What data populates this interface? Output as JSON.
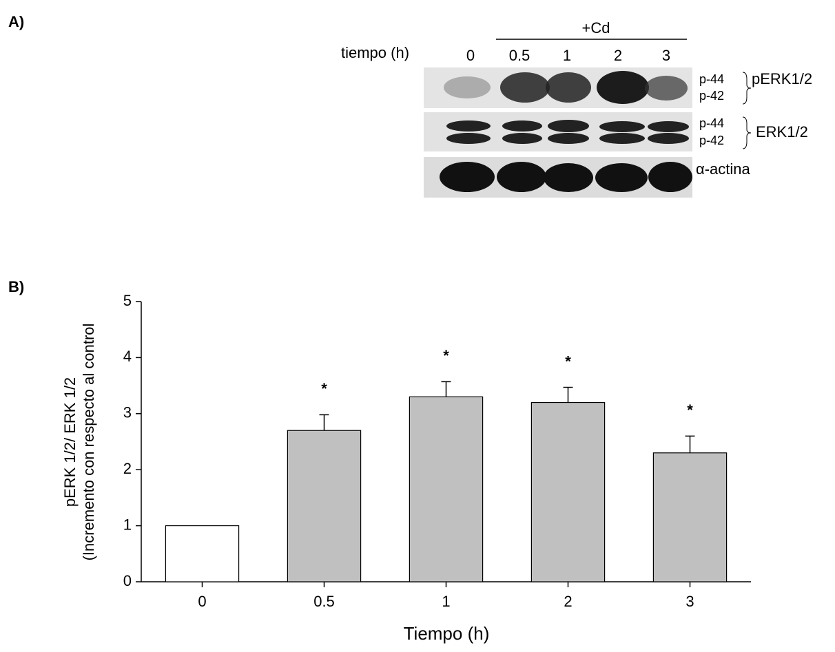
{
  "panel_a": {
    "label": "A)",
    "treatment": "+Cd",
    "time_label": "tiempo  (h)",
    "lanes": [
      "0",
      "0.5",
      "1",
      "2",
      "3"
    ],
    "rows": [
      {
        "bands": [
          "p-44",
          "p-42"
        ],
        "protein": "pERK1/2"
      },
      {
        "bands": [
          "p-44",
          "p-42"
        ],
        "protein": "ERK1/2"
      },
      {
        "protein": "α-actina"
      }
    ]
  },
  "chart_data": {
    "type": "bar",
    "panel_label": "B)",
    "categories": [
      "0",
      "0.5",
      "1",
      "2",
      "3"
    ],
    "values": [
      1,
      2.7,
      3.3,
      3.2,
      2.3
    ],
    "errors": [
      0,
      0.28,
      0.27,
      0.27,
      0.3
    ],
    "annotations": [
      null,
      "*",
      "*",
      "*",
      "*"
    ],
    "colors": [
      "#ffffff",
      "#c0c0c0",
      "#c0c0c0",
      "#c0c0c0",
      "#c0c0c0"
    ],
    "ylabel": [
      "pERK 1/2/ ERK 1/2",
      "(Incremento con respecto al control"
    ],
    "xlabel": "Tiempo (h)",
    "ylim": [
      0,
      5
    ],
    "yticks": [
      0,
      1,
      2,
      3,
      4,
      5
    ]
  }
}
